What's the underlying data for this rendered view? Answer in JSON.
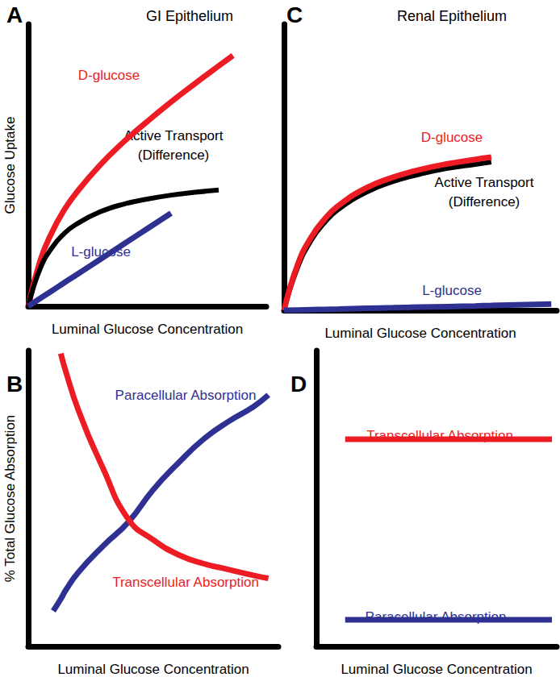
{
  "chart_data": [
    {
      "type": "line",
      "panel": "A",
      "title": "GI Epithelium",
      "x_label": "Luminal Glucose Concentration",
      "y_label": "Glucose Uptake",
      "x": [
        0,
        0.5,
        1,
        1.5,
        2,
        3,
        4,
        5,
        6,
        7,
        8,
        8.6
      ],
      "xlim": [
        0,
        10
      ],
      "ylim": [
        0,
        10
      ],
      "tick_labels": false,
      "grid": false,
      "series": [
        {
          "name": "D-glucose",
          "color": "#ed1c24",
          "values": [
            0,
            1.61,
            2.63,
            3.4,
            4.0,
            4.99,
            5.82,
            6.55,
            7.24,
            7.89,
            8.52,
            8.89
          ]
        },
        {
          "name": "Active Transport\n(Difference)",
          "color": "#000000",
          "values": [
            0,
            1.33,
            2.08,
            2.57,
            2.9,
            3.34,
            3.62,
            3.8,
            3.94,
            4.04,
            4.12,
            null
          ]
        },
        {
          "name": "L-glucose",
          "color": "#2e3192",
          "values": [
            0,
            0.28,
            0.55,
            0.83,
            1.1,
            1.65,
            2.2,
            2.75,
            3.3,
            null,
            null,
            null
          ]
        }
      ]
    },
    {
      "type": "line",
      "panel": "B",
      "x_label": "Luminal Glucose Concentration",
      "y_label": "% Total Glucose Absorption",
      "x": [
        1,
        1.3,
        1.5,
        2,
        3,
        4,
        5,
        6,
        7,
        8,
        9,
        9.6
      ],
      "xlim": [
        0,
        10
      ],
      "ylim": [
        0,
        100
      ],
      "tick_labels": false,
      "grid": false,
      "series": [
        {
          "name": "Paracellular Absorption",
          "color": "#2e3192",
          "values": [
            12,
            16,
            19,
            25,
            34,
            42,
            53,
            62,
            70,
            76,
            81,
            85
          ]
        },
        {
          "name": "Transcellular Absorption",
          "color": "#ed1c24",
          "values": [
            null,
            99,
            93,
            80,
            60,
            43,
            36,
            31,
            28,
            26,
            24,
            23
          ]
        }
      ]
    },
    {
      "type": "line",
      "panel": "C",
      "title": "Renal Epithelium",
      "x_label": "Luminal Glucose Concentration",
      "x": [
        0,
        0.5,
        1,
        1.5,
        2,
        3,
        4,
        5,
        6,
        7,
        7.6,
        9.8
      ],
      "xlim": [
        0,
        10
      ],
      "ylim": [
        0,
        10
      ],
      "tick_labels": false,
      "grid": false,
      "series": [
        {
          "name": "Active Transport\n(Difference)",
          "color": "#000000",
          "values": [
            0,
            1.5,
            2.45,
            3.08,
            3.53,
            4.12,
            4.5,
            4.76,
            4.96,
            5.1,
            5.18,
            null
          ]
        },
        {
          "name": "D-glucose",
          "color": "#ed1c24",
          "values": [
            0,
            1.6,
            2.56,
            3.2,
            3.66,
            4.27,
            4.65,
            4.92,
            5.12,
            5.27,
            5.35,
            null
          ]
        },
        {
          "name": "L-glucose",
          "color": "#2e3192",
          "values": [
            0,
            0.01,
            0.02,
            0.03,
            0.04,
            0.07,
            0.09,
            0.11,
            0.13,
            0.15,
            0.17,
            0.22
          ]
        }
      ]
    },
    {
      "type": "line",
      "panel": "D",
      "x_label": "Luminal Glucose Concentration",
      "x": [
        1.2,
        9.8
      ],
      "xlim": [
        0,
        10
      ],
      "ylim": [
        0,
        100
      ],
      "tick_labels": false,
      "grid": false,
      "series": [
        {
          "name": "Transcellular Absorption",
          "color": "#ed1c24",
          "values": [
            70,
            70
          ]
        },
        {
          "name": "Paracellular Absorption",
          "color": "#2e3192",
          "values": [
            9,
            9
          ]
        }
      ]
    }
  ]
}
